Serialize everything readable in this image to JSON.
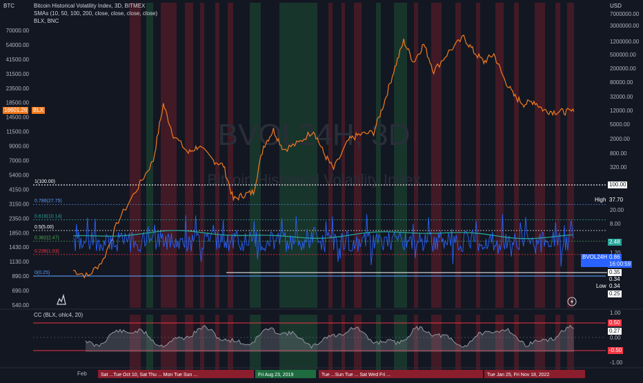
{
  "header": {
    "title": "Bitcoin Historical Volatility Index, 3D, BITMEX",
    "sma_legend": "SMAs (10, 50, 100, 200, close, close, close, close)",
    "overlay_legend": "BLX, BNC",
    "oscillator_legend": "CC (BLX, ohlc4, 20)",
    "left_axis_unit": "BTC",
    "right_axis_unit": "USD"
  },
  "watermark": {
    "symbol": "BVOL24H, 3D",
    "name": "Bitcoin Historical Volatility Index"
  },
  "colors": {
    "background": "#131722",
    "btc_line": "#f57c1f",
    "bvol_line": "#2962ff",
    "sma_line": "#26a69a",
    "red_band": "#7a1f2b",
    "green_band": "#1e5b3a",
    "fib_1": "#ffffff",
    "fib_0786": "#5b9cf6",
    "fib_0618": "#26a69a",
    "fib_05": "#ffffff",
    "fib_0382": "#4caf50",
    "fib_0236": "#f23645",
    "fib_0": "#5b9cf6"
  },
  "axes": {
    "left_ticks": [
      "70000.00",
      "54000.00",
      "41500.00",
      "31500.00",
      "23500.00",
      "18500.00",
      "14500.00",
      "11500.00",
      "9000.00",
      "7000.00",
      "5400.00",
      "4150.00",
      "3150.00",
      "2350.00",
      "1850.00",
      "1430.00",
      "1130.00",
      "890.00",
      "690.00",
      "540.00"
    ],
    "right_ticks": [
      "7000000.00",
      "3000000.00",
      "1200000.00",
      "500000.00",
      "200000.00",
      "80000.00",
      "32000.00",
      "12000.00",
      "5000.00",
      "2000.00",
      "800.00",
      "320.00",
      "100.00",
      "37.70",
      "20.00",
      "8.00",
      "2.48",
      "1.20",
      "0.86",
      "0.35",
      "0.34",
      "0.34",
      "0.25"
    ],
    "osc_ticks": [
      "1.00",
      "0.50",
      "0.27",
      "0.00",
      "-0.50",
      "-1.00"
    ],
    "time_labels": [
      "Feb"
    ]
  },
  "labels": {
    "blx_price": "16601.26",
    "blx_name": "BLX",
    "high": "High",
    "high_value": "37.70",
    "low": "Low",
    "low_value": "0.34",
    "fib_value_100": "100.00",
    "sma_value": "2.48",
    "bvol_name": "BVOL24H",
    "bvol_value": "0.86",
    "countdown": "16:00:59",
    "level_035": "0.35",
    "level_034": "0.34",
    "level_025": "0.25",
    "osc_upper": "0.50",
    "osc_value": "0.27",
    "osc_lower": "-0.50"
  },
  "fib_levels": [
    {
      "ratio": 1,
      "label": "1(100.00)",
      "value": 100.0,
      "key": "fib_1",
      "style": "dotted"
    },
    {
      "ratio": 0.786,
      "label": "0.786(27.75)",
      "value": 27.75,
      "key": "fib_0786",
      "style": "dotted"
    },
    {
      "ratio": 0.618,
      "label": "0.618(10.14)",
      "value": 10.14,
      "key": "fib_0618",
      "style": "dotted"
    },
    {
      "ratio": 0.5,
      "label": "0.5(5.00)",
      "value": 5.0,
      "key": "fib_05",
      "style": "dotted"
    },
    {
      "ratio": 0.382,
      "label": "0.382(2.47)",
      "value": 2.47,
      "key": "fib_0382",
      "style": "dotted"
    },
    {
      "ratio": 0.236,
      "label": "0.236(1.03)",
      "value": 1.03,
      "key": "fib_0236",
      "style": "dotted"
    },
    {
      "ratio": 0,
      "label": "0(0.25)",
      "value": 0.25,
      "key": "fib_0",
      "style": "solid"
    }
  ],
  "bottom_event_strip": [
    {
      "text": "Sat ...Tue Oct 10, Sat Thu ... Mon Tue Sun ...",
      "color": "red"
    },
    {
      "text": "Fri Aug 23, 2019",
      "color": "green"
    },
    {
      "text": "Tue ...Sun Tue ... Sat Wed Fri ...",
      "color": "red"
    },
    {
      "text": "Tue Jan 25, Fri Nov 18, 2022",
      "color": "red"
    }
  ],
  "chart_data": {
    "type": "line",
    "title": "Bitcoin Historical Volatility Index, 3D, BITMEX",
    "series": [
      {
        "name": "BLX",
        "axis": "left (BTC price, log)",
        "x": [
          0,
          0.03,
          0.06,
          0.09,
          0.13,
          0.16,
          0.18,
          0.2,
          0.23,
          0.25,
          0.28,
          0.3,
          0.32,
          0.34,
          0.36,
          0.38,
          0.4,
          0.42,
          0.45,
          0.48,
          0.5,
          0.52,
          0.55,
          0.57,
          0.6,
          0.62,
          0.64,
          0.66,
          0.68,
          0.7,
          0.72,
          0.75,
          0.78,
          0.8,
          0.82,
          0.84,
          0.86,
          0.88,
          0.9,
          0.92,
          0.94,
          0.96,
          0.98,
          1.0
        ],
        "values": [
          1000,
          900,
          1200,
          2400,
          4400,
          7000,
          19000,
          11000,
          8000,
          9000,
          7000,
          6400,
          3500,
          3800,
          4000,
          9000,
          12000,
          8500,
          9500,
          12000,
          8000,
          6000,
          10000,
          11000,
          11500,
          19000,
          34000,
          58000,
          40000,
          55000,
          34000,
          48000,
          62000,
          48000,
          40000,
          46000,
          30000,
          22000,
          19000,
          20000,
          17000,
          16600,
          16601.26,
          16601.26
        ]
      },
      {
        "name": "BVOL24H",
        "axis": "right (log)",
        "current": 0.86,
        "high": 37.7,
        "low": 0.34,
        "typical_range": [
          1.2,
          8.0
        ]
      },
      {
        "name": "SMA",
        "axis": "right (log)",
        "current": 2.48
      }
    ],
    "x_label": "",
    "y_label": "",
    "oscillator": {
      "name": "CC (BLX, ohlc4, 20)",
      "current": 0.27,
      "upper_band": 0.5,
      "lower_band": -0.5,
      "ylim": [
        -1,
        1
      ]
    },
    "grid": true,
    "legend": "top-left"
  }
}
